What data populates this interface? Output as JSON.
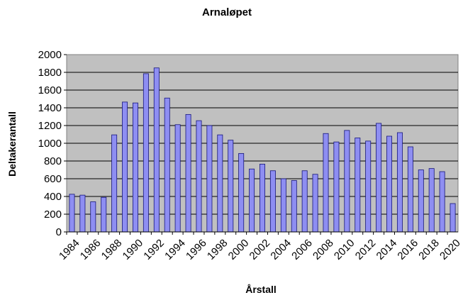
{
  "chart_data": {
    "type": "bar",
    "title": "Arnaløpet",
    "xlabel": "Årstall",
    "ylabel": "Deltakerantall",
    "ylim": [
      0,
      2000
    ],
    "yticks": [
      "0",
      "200",
      "400",
      "600",
      "800",
      "1000",
      "1200",
      "1400",
      "1600",
      "1800",
      "2000"
    ],
    "grid": true,
    "legend": "none",
    "categories": [
      "1984",
      "1985",
      "1986",
      "1987",
      "1988",
      "1989",
      "1990",
      "1991",
      "1992",
      "1993",
      "1994",
      "1995",
      "1996",
      "1997",
      "1998",
      "1999",
      "2000",
      "2001",
      "2002",
      "2003",
      "2004",
      "2005",
      "2006",
      "2007",
      "2008",
      "2009",
      "2010",
      "2011",
      "2012",
      "2013",
      "2014",
      "2015",
      "2016",
      "2017",
      "2018",
      "2019",
      "2020"
    ],
    "xtick_labels": [
      "1984",
      "1986",
      "1988",
      "1990",
      "1992",
      "1994",
      "1996",
      "1998",
      "2000",
      "2002",
      "2004",
      "2006",
      "2008",
      "2010",
      "2012",
      "2014",
      "2016",
      "2018",
      "2020"
    ],
    "values": [
      425,
      415,
      340,
      390,
      1095,
      1465,
      1455,
      1785,
      1850,
      1510,
      1210,
      1325,
      1255,
      1200,
      1095,
      1035,
      885,
      710,
      765,
      690,
      600,
      580,
      690,
      650,
      1110,
      1015,
      1145,
      1060,
      1025,
      1225,
      1080,
      1120,
      960,
      700,
      715,
      680,
      320
    ],
    "colors": {
      "bar_fill": "#8e8ef2",
      "bar_stroke": "#16167a",
      "plot_background": "#c0c0c0",
      "gridline": "#000000"
    }
  }
}
